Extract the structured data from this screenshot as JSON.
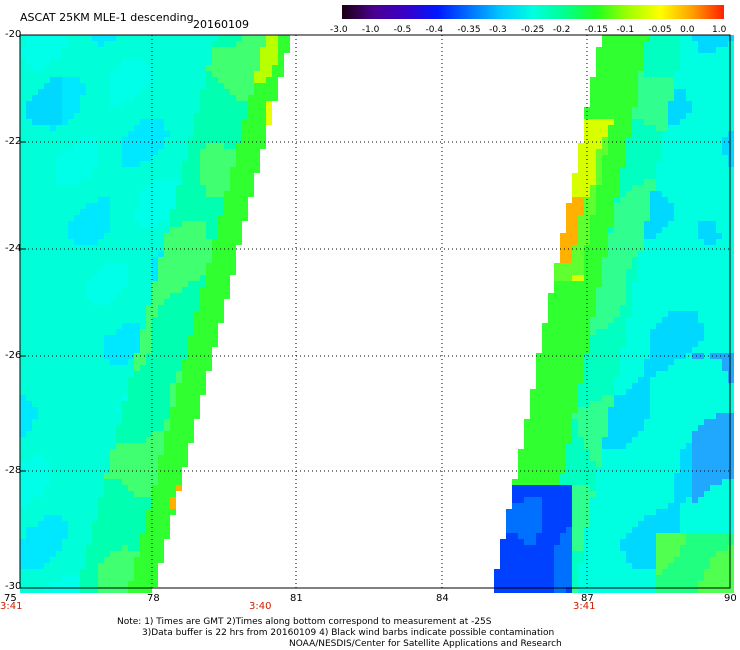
{
  "header": {
    "title": "ASCAT 25KM MLE-1 descending",
    "date": "20160109"
  },
  "colorbar": {
    "labels": [
      "-3.0",
      "-1.0",
      "-0.5",
      "-0.4",
      "-0.35",
      "-0.3",
      "-0.25",
      "-0.2",
      "-0.15",
      "-0.1",
      "-0.05",
      "0.0",
      "1.0"
    ],
    "colors": [
      "#1a0010",
      "#4a0090",
      "#3800c8",
      "#0018ff",
      "#0070ff",
      "#00c8ff",
      "#00ffe0",
      "#00ff90",
      "#20ff20",
      "#a0ff00",
      "#ffff00",
      "#ffa000",
      "#ff2000"
    ]
  },
  "axes": {
    "lat_labels": [
      "-20",
      "-22",
      "-24",
      "-26",
      "-28",
      "-30"
    ],
    "lon_labels": [
      "75",
      "78",
      "81",
      "84",
      "87",
      "90"
    ],
    "time_labels": [
      "3:41",
      "3:40",
      "3:41"
    ]
  },
  "notes": {
    "line1": "Note: 1) Times are GMT 2)Times along bottom correspond to measurement at -25S",
    "line2": "3)Data buffer is 22 hrs from 20160109 4) Black wind barbs indicate possible contamination",
    "line3": "NOAA/NESDIS/Center for Satellite Applications and Research"
  },
  "map": {
    "lat_range": [
      -30,
      -20
    ],
    "lon_range": [
      75,
      90
    ],
    "grid": true
  }
}
